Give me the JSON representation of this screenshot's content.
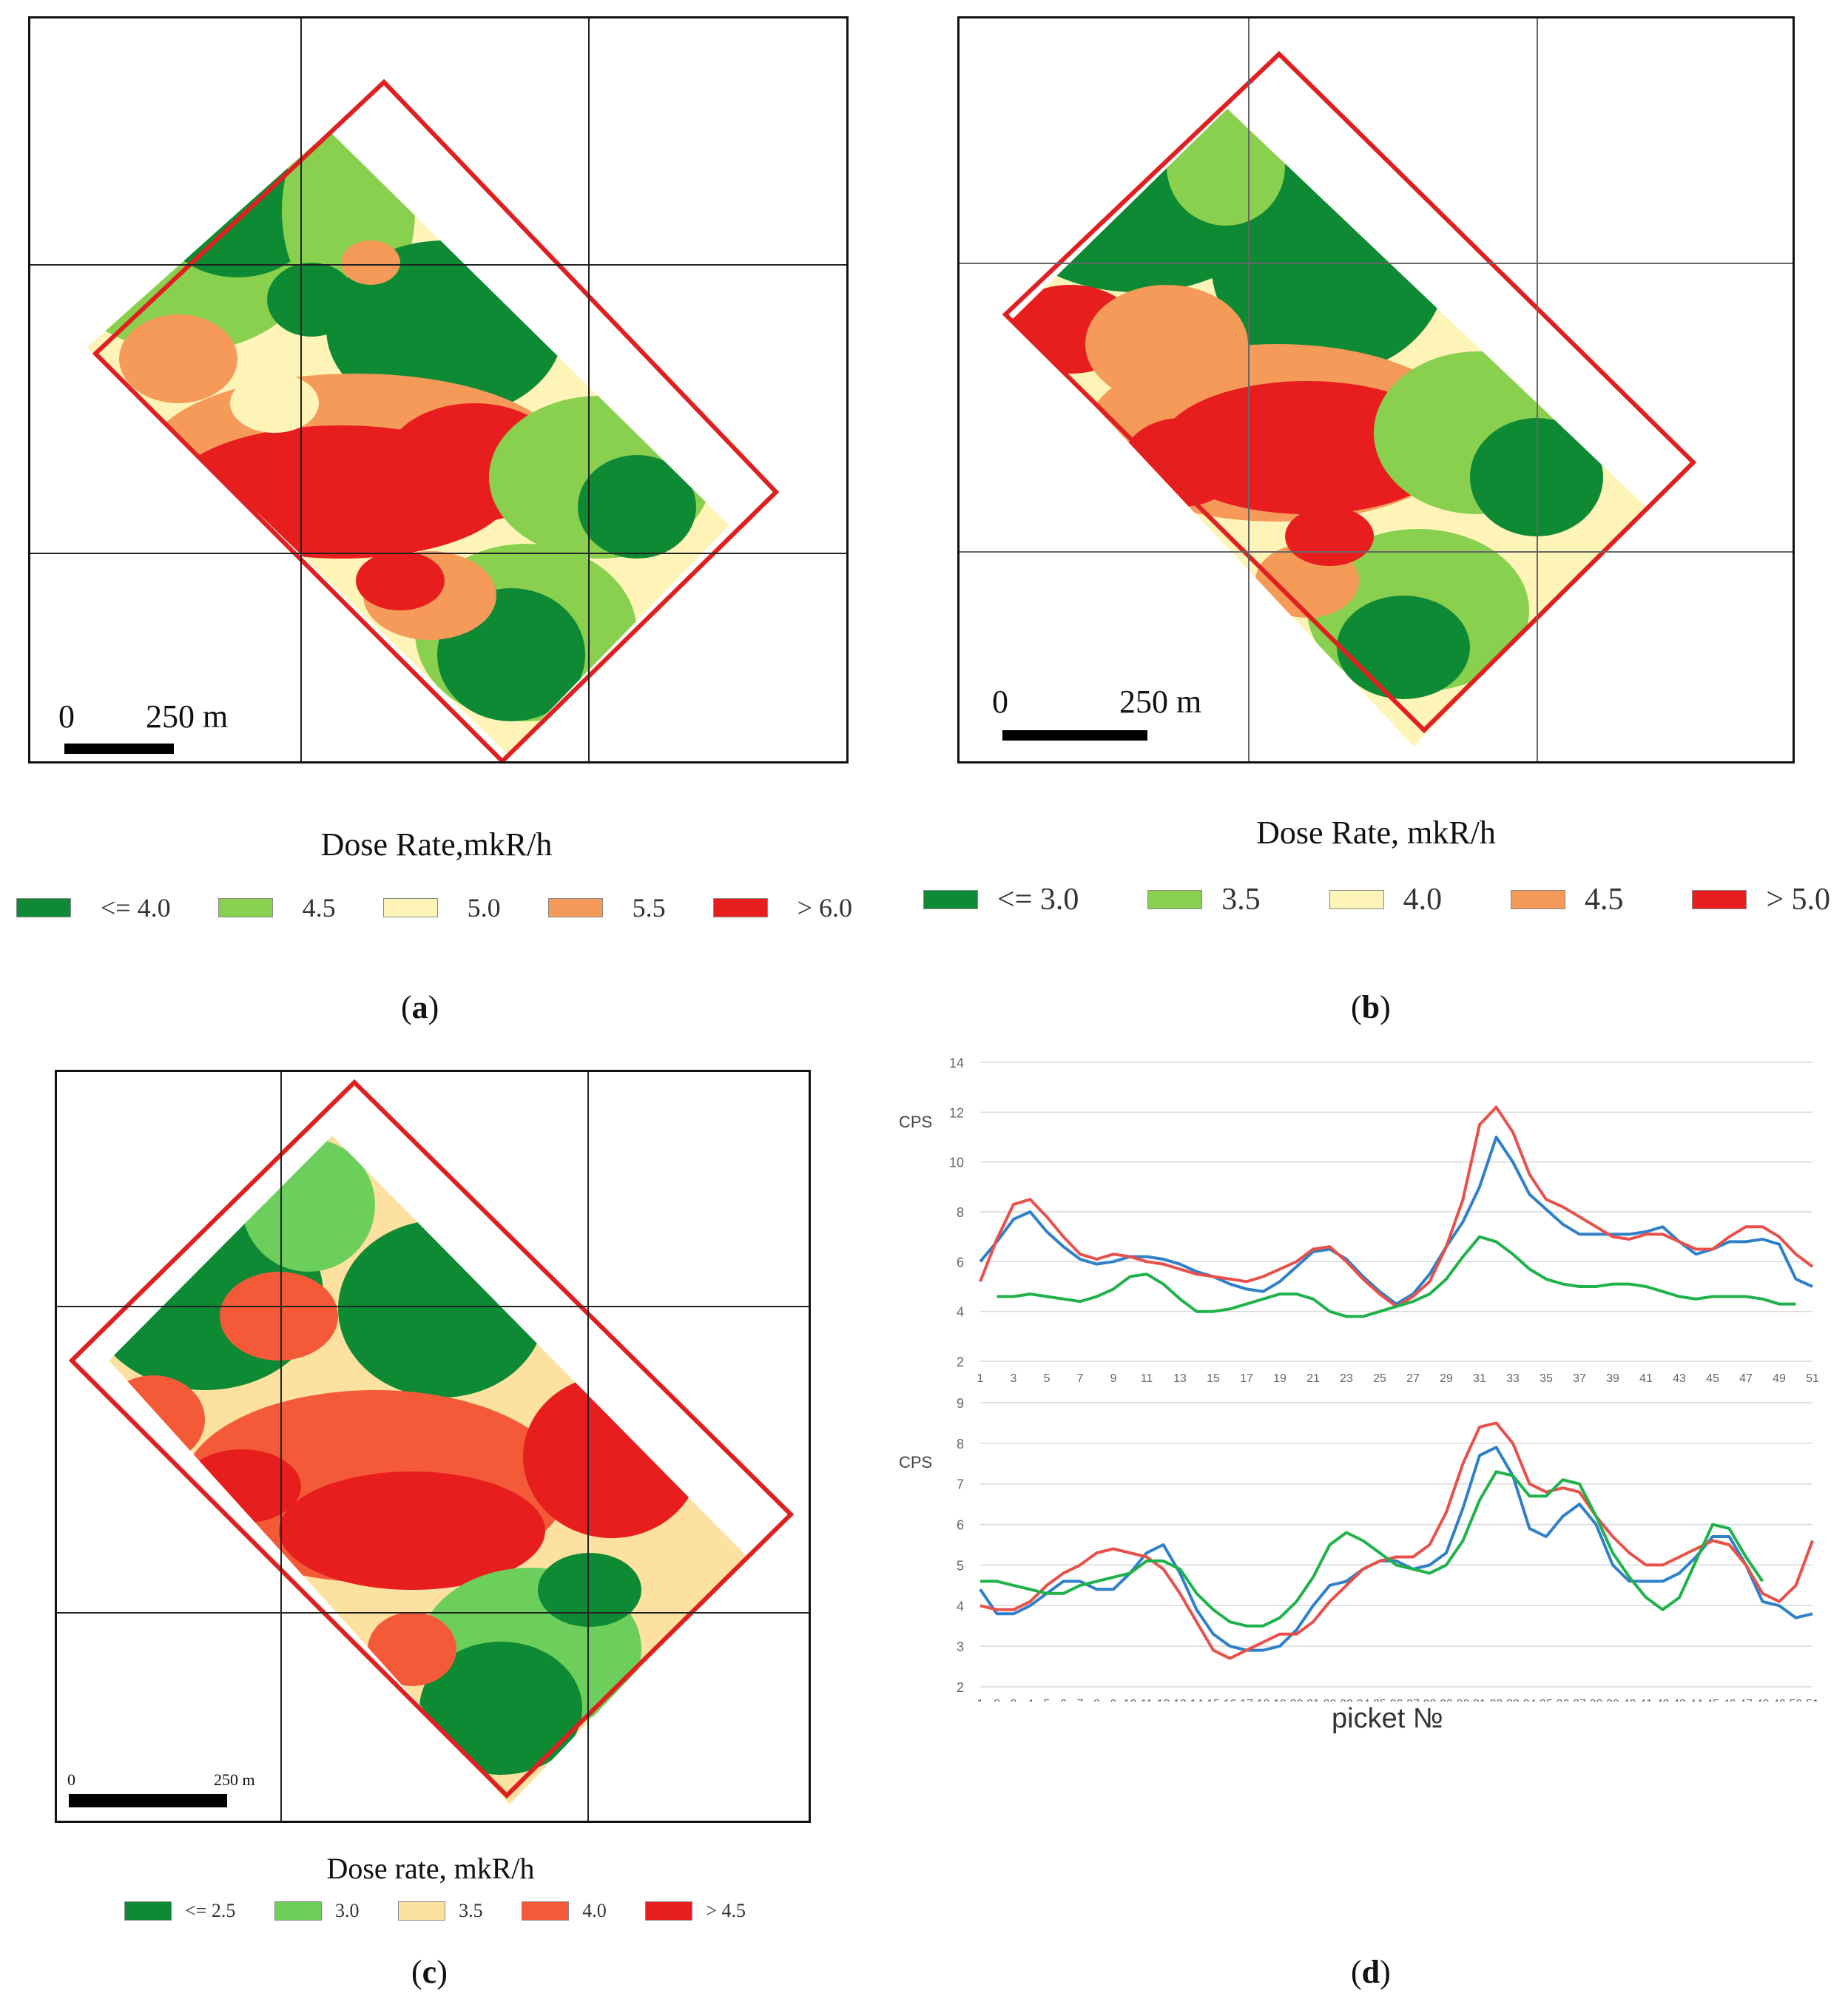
{
  "colors": {
    "c1": "#0e8a34",
    "c2": "#8ad04f",
    "c3": "#fff4b8",
    "c4": "#f59a58",
    "c5": "#e81e1e",
    "frame": "#e02020",
    "blue": "#2f80c8",
    "red": "#e8504a",
    "green": "#1fb24a"
  },
  "panel_a": {
    "scale_zero": "0",
    "scale_dist": "250 m",
    "legend_title": "Dose Rate,mkR/h",
    "legend": [
      {
        "label": "<= 4.0",
        "color": "#0e8a34"
      },
      {
        "label": "4.5",
        "color": "#8ad04f"
      },
      {
        "label": "5.0",
        "color": "#fff4b8"
      },
      {
        "label": "5.5",
        "color": "#f59a58"
      },
      {
        "label": "> 6.0",
        "color": "#e81e1e"
      }
    ],
    "caption": "a"
  },
  "panel_b": {
    "scale_zero": "0",
    "scale_dist": "250 m",
    "legend_title": "Dose Rate, mkR/h",
    "legend": [
      {
        "label": "<= 3.0",
        "color": "#0e8a34"
      },
      {
        "label": "3.5",
        "color": "#8ad04f"
      },
      {
        "label": "4.0",
        "color": "#fff4b8"
      },
      {
        "label": "4.5",
        "color": "#f59a58"
      },
      {
        "label": "> 5.0",
        "color": "#e81e1e"
      }
    ],
    "caption": "b"
  },
  "panel_c": {
    "scale_zero": "0",
    "scale_dist": "250 m",
    "legend_title": "Dose rate, mkR/h",
    "legend": [
      {
        "label": "<= 2.5",
        "color": "#0e8a34"
      },
      {
        "label": "3.0",
        "color": "#6ccf5c"
      },
      {
        "label": "3.5",
        "color": "#fde1a0"
      },
      {
        "label": "4.0",
        "color": "#f55a38"
      },
      {
        "label": "> 4.5",
        "color": "#e81e1e"
      }
    ],
    "caption": "c"
  },
  "panel_d": {
    "caption": "d",
    "xlabel": "picket №"
  },
  "chart_data": [
    {
      "type": "line",
      "title": "",
      "ylabel": "CPS",
      "xlabel": "",
      "ylim": [
        2,
        14
      ],
      "yticks": [
        2,
        4,
        6,
        8,
        10,
        12,
        14
      ],
      "x": [
        1,
        2,
        3,
        4,
        5,
        6,
        7,
        8,
        9,
        10,
        11,
        12,
        13,
        14,
        15,
        16,
        17,
        18,
        19,
        20,
        21,
        22,
        23,
        24,
        25,
        26,
        27,
        28,
        29,
        30,
        31,
        32,
        33,
        34,
        35,
        36,
        37,
        38,
        39,
        40,
        41,
        42,
        43,
        44,
        45,
        46,
        47,
        48,
        49,
        50,
        51
      ],
      "xticks": [
        1,
        3,
        5,
        7,
        9,
        11,
        13,
        15,
        17,
        19,
        21,
        23,
        25,
        27,
        29,
        31,
        33,
        35,
        37,
        39,
        41,
        43,
        45,
        47,
        49,
        51
      ],
      "series": [
        {
          "name": "blue",
          "color": "#2f80c8",
          "values": [
            6.0,
            6.8,
            7.7,
            8.0,
            7.2,
            6.6,
            6.1,
            5.9,
            6.0,
            6.2,
            6.2,
            6.1,
            5.9,
            5.6,
            5.4,
            5.1,
            4.9,
            4.8,
            5.2,
            5.8,
            6.4,
            6.5,
            6.1,
            5.4,
            4.8,
            4.3,
            4.7,
            5.5,
            6.6,
            7.6,
            9.0,
            11.0,
            10.0,
            8.7,
            8.1,
            7.5,
            7.1,
            7.1,
            7.1,
            7.1,
            7.2,
            7.4,
            6.8,
            6.3,
            6.5,
            6.8,
            6.8,
            6.9,
            6.7,
            5.3,
            5.0
          ]
        },
        {
          "name": "red",
          "color": "#e8504a",
          "values": [
            5.2,
            6.9,
            8.3,
            8.5,
            7.8,
            7.0,
            6.3,
            6.1,
            6.3,
            6.2,
            6.0,
            5.9,
            5.7,
            5.5,
            5.4,
            5.3,
            5.2,
            5.4,
            5.7,
            6.0,
            6.5,
            6.6,
            6.0,
            5.3,
            4.7,
            4.2,
            4.6,
            5.2,
            6.6,
            8.5,
            11.5,
            12.2,
            11.2,
            9.5,
            8.5,
            8.2,
            7.8,
            7.4,
            7.0,
            6.9,
            7.1,
            7.1,
            6.8,
            6.5,
            6.5,
            7.0,
            7.4,
            7.4,
            7.0,
            6.3,
            5.8
          ]
        },
        {
          "name": "green",
          "color": "#1fb24a",
          "values": [
            null,
            4.6,
            4.6,
            4.7,
            4.6,
            4.5,
            4.4,
            4.6,
            4.9,
            5.4,
            5.5,
            5.1,
            4.5,
            4.0,
            4.0,
            4.1,
            4.3,
            4.5,
            4.7,
            4.7,
            4.5,
            4.0,
            3.8,
            3.8,
            4.0,
            4.2,
            4.4,
            4.7,
            5.3,
            6.2,
            7.0,
            6.8,
            6.3,
            5.7,
            5.3,
            5.1,
            5.0,
            5.0,
            5.1,
            5.1,
            5.0,
            4.8,
            4.6,
            4.5,
            4.6,
            4.6,
            4.6,
            4.5,
            4.3,
            4.3,
            null
          ]
        }
      ]
    },
    {
      "type": "line",
      "title": "",
      "ylabel": "CPS",
      "xlabel": "picket №",
      "ylim": [
        2,
        9
      ],
      "yticks": [
        2,
        3,
        4,
        5,
        6,
        7,
        8,
        9
      ],
      "x": [
        1,
        2,
        3,
        4,
        5,
        6,
        7,
        8,
        9,
        10,
        11,
        12,
        13,
        14,
        15,
        16,
        17,
        18,
        19,
        20,
        21,
        22,
        23,
        24,
        25,
        26,
        27,
        28,
        29,
        30,
        31,
        32,
        33,
        34,
        35,
        36,
        37,
        38,
        39,
        40,
        41,
        42,
        43,
        44,
        45,
        46,
        47,
        48,
        49,
        50,
        51
      ],
      "xticks": [
        1,
        2,
        3,
        4,
        5,
        6,
        7,
        8,
        9,
        10,
        11,
        12,
        13,
        14,
        15,
        16,
        17,
        18,
        19,
        20,
        21,
        22,
        23,
        24,
        25,
        26,
        27,
        28,
        29,
        30,
        31,
        32,
        33,
        34,
        35,
        36,
        37,
        38,
        39,
        40,
        41,
        42,
        43,
        44,
        45,
        46,
        47,
        48,
        49,
        50,
        51
      ],
      "series": [
        {
          "name": "blue",
          "color": "#2f80c8",
          "values": [
            4.4,
            3.8,
            3.8,
            4.0,
            4.3,
            4.6,
            4.6,
            4.4,
            4.4,
            4.8,
            5.3,
            5.5,
            4.8,
            3.9,
            3.3,
            3.0,
            2.9,
            2.9,
            3.0,
            3.4,
            4.0,
            4.5,
            4.6,
            4.9,
            5.1,
            5.1,
            4.9,
            5.0,
            5.3,
            6.4,
            7.7,
            7.9,
            7.2,
            5.9,
            5.7,
            6.2,
            6.5,
            6.0,
            5.0,
            4.6,
            4.6,
            4.6,
            4.8,
            5.2,
            5.7,
            5.7,
            5.0,
            4.1,
            4.0,
            3.7,
            3.8
          ]
        },
        {
          "name": "red",
          "color": "#e8504a",
          "values": [
            4.0,
            3.9,
            3.9,
            4.1,
            4.5,
            4.8,
            5.0,
            5.3,
            5.4,
            5.3,
            5.2,
            4.9,
            4.3,
            3.6,
            2.9,
            2.7,
            2.9,
            3.1,
            3.3,
            3.3,
            3.6,
            4.1,
            4.5,
            4.9,
            5.1,
            5.2,
            5.2,
            5.5,
            6.3,
            7.5,
            8.4,
            8.5,
            8.0,
            7.0,
            6.8,
            6.9,
            6.8,
            6.2,
            5.7,
            5.3,
            5.0,
            5.0,
            5.2,
            5.4,
            5.6,
            5.5,
            5.0,
            4.3,
            4.1,
            4.5,
            5.6
          ]
        },
        {
          "name": "green",
          "color": "#1fb24a",
          "values": [
            4.6,
            4.6,
            4.5,
            4.4,
            4.3,
            4.3,
            4.5,
            4.6,
            4.7,
            4.8,
            5.1,
            5.1,
            4.9,
            4.3,
            3.9,
            3.6,
            3.5,
            3.5,
            3.7,
            4.1,
            4.7,
            5.5,
            5.8,
            5.6,
            5.3,
            5.0,
            4.9,
            4.8,
            5.0,
            5.6,
            6.6,
            7.3,
            7.2,
            6.7,
            6.7,
            7.1,
            7.0,
            6.2,
            5.3,
            4.7,
            4.2,
            3.9,
            4.2,
            5.1,
            6.0,
            5.9,
            5.2,
            4.6,
            null,
            null,
            null
          ]
        }
      ]
    }
  ]
}
